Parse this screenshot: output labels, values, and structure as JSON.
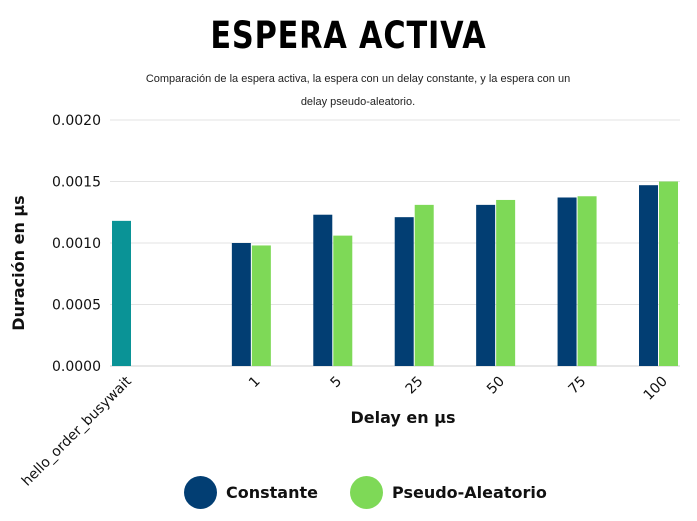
{
  "title": "ESPERA ACTIVA",
  "subtitle": "Comparación de la espera activa, la espera con un delay constante, y la espera con un delay pseudo-aleatorio.",
  "chart_data": {
    "type": "bar",
    "xlabel": "Delay en μs",
    "ylabel": "Duración en μs",
    "ylim": [
      0,
      0.002
    ],
    "yticks": [
      "0.0000",
      "0.0005",
      "0.0010",
      "0.0015",
      "0.0020"
    ],
    "categories": [
      "hello_order_busywait",
      "1",
      "5",
      "25",
      "50",
      "75",
      "100"
    ],
    "grid": true,
    "legend_position": "bottom",
    "series": [
      {
        "name": "hello_order_busywait",
        "color": "#0a9396",
        "values": [
          0.00118,
          null,
          null,
          null,
          null,
          null,
          null
        ]
      },
      {
        "name": "Constante",
        "color": "#023e73",
        "values": [
          null,
          0.001,
          0.00123,
          0.00121,
          0.00131,
          0.00137,
          0.00147
        ]
      },
      {
        "name": "Pseudo-Aleatorio",
        "color": "#7ed957",
        "values": [
          null,
          0.00098,
          0.00106,
          0.00131,
          0.00135,
          0.00138,
          0.0015
        ]
      }
    ]
  },
  "legend": [
    {
      "label": "Constante",
      "color": "#023e73"
    },
    {
      "label": "Pseudo-Aleatorio",
      "color": "#7ed957"
    }
  ]
}
